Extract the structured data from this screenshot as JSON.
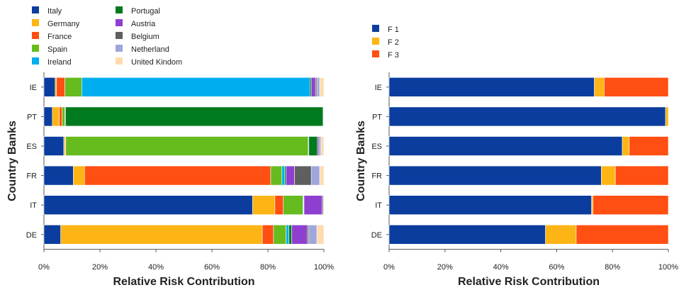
{
  "chart_data": [
    {
      "type": "bar",
      "orientation": "horizontal",
      "stacked": true,
      "normalized": true,
      "xlabel": "Relative Risk Contribution",
      "ylabel": "Country Banks",
      "xlim": [
        0,
        100
      ],
      "xticks": [
        "0%",
        "20%",
        "40%",
        "60%",
        "80%",
        "100%"
      ],
      "categories": [
        "IE",
        "PT",
        "ES",
        "FR",
        "IT",
        "DE"
      ],
      "legend_position": "top-left",
      "series": [
        {
          "name": "Italy",
          "color": "#0B3D9E",
          "values": [
            4.0,
            3.0,
            7.0,
            10.5,
            74.5,
            6.0
          ]
        },
        {
          "name": "Germany",
          "color": "#FDB515",
          "values": [
            0.5,
            2.5,
            0.5,
            4.0,
            8.0,
            72.0
          ]
        },
        {
          "name": "France",
          "color": "#FF4F12",
          "values": [
            3.0,
            1.0,
            0.2,
            66.5,
            3.0,
            4.0
          ]
        },
        {
          "name": "Spain",
          "color": "#66BB1E",
          "values": [
            6.0,
            1.0,
            85.5,
            4.0,
            7.0,
            4.5
          ]
        },
        {
          "name": "Ireland",
          "color": "#00AEEF",
          "values": [
            81.5,
            0.2,
            0.2,
            1.0,
            0.2,
            1.0
          ]
        },
        {
          "name": "Portugal",
          "color": "#007A1E",
          "values": [
            0.5,
            92.0,
            3.0,
            0.5,
            0.2,
            1.0
          ]
        },
        {
          "name": "Austria",
          "color": "#8F3FD0",
          "values": [
            1.5,
            0.1,
            0.5,
            3.0,
            6.5,
            5.5
          ]
        },
        {
          "name": "Belgium",
          "color": "#5F5F5F",
          "values": [
            0.5,
            0.1,
            0.3,
            6.0,
            0.4,
            0.5
          ]
        },
        {
          "name": "Netherland",
          "color": "#9FA6DB",
          "values": [
            1.0,
            0.05,
            0.5,
            3.0,
            0.1,
            3.0
          ]
        },
        {
          "name": "United Kindom",
          "color": "#FEDBAF",
          "values": [
            1.5,
            0.05,
            1.0,
            1.5,
            0.1,
            2.5
          ]
        }
      ]
    },
    {
      "type": "bar",
      "orientation": "horizontal",
      "stacked": true,
      "normalized": true,
      "xlabel": "Relative Risk Contribution",
      "ylabel": "Country Banks",
      "xlim": [
        0,
        100
      ],
      "xticks": [
        "0%",
        "20%",
        "40%",
        "60%",
        "80%",
        "100%"
      ],
      "categories": [
        "IE",
        "PT",
        "ES",
        "FR",
        "IT",
        "DE"
      ],
      "legend_position": "top-left",
      "series": [
        {
          "name": "F 1",
          "color": "#0B3D9E",
          "values": [
            73.5,
            99.0,
            83.5,
            76.0,
            72.5,
            56.0
          ]
        },
        {
          "name": "F 2",
          "color": "#FDB515",
          "values": [
            3.5,
            1.0,
            2.5,
            5.0,
            0.5,
            11.0
          ]
        },
        {
          "name": "F 3",
          "color": "#FF4F12",
          "values": [
            23.0,
            0.0,
            14.0,
            19.0,
            27.0,
            33.0
          ]
        }
      ]
    }
  ]
}
